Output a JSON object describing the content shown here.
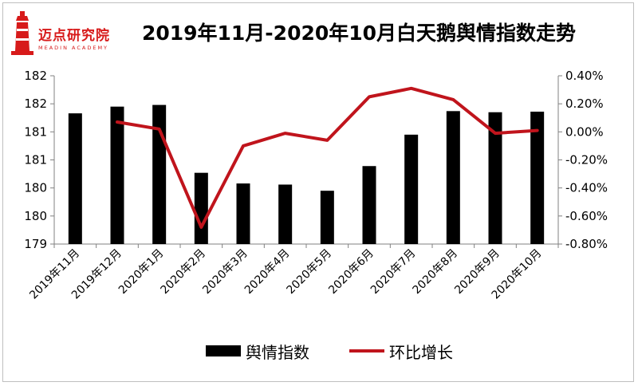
{
  "logo": {
    "name": "迈点研究院",
    "sub": "MEADIN ACADEMY"
  },
  "chart_data": {
    "type": "bar+line",
    "title": "2019年11月-2020年10月白天鹅舆情指数走势",
    "categories": [
      "2019年11月",
      "2019年12月",
      "2020年1月",
      "2020年2月",
      "2020年3月",
      "2020年4月",
      "2020年5月",
      "2020年6月",
      "2020年7月",
      "2020年8月",
      "2020年9月",
      "2020年10月"
    ],
    "series": [
      {
        "name": "舆情指数",
        "type": "bar",
        "axis": "left",
        "color": "#000000",
        "values": [
          181.33,
          181.45,
          181.48,
          180.27,
          180.08,
          180.06,
          179.95,
          180.39,
          180.95,
          181.37,
          181.35,
          181.36
        ]
      },
      {
        "name": "环比增长",
        "type": "line",
        "axis": "right",
        "color": "#c0141c",
        "values": [
          null,
          0.0007,
          0.0002,
          -0.0068,
          -0.001,
          -0.0001,
          -0.0006,
          0.0025,
          0.0031,
          0.0023,
          -0.0001,
          0.0001
        ]
      }
    ],
    "y_left": {
      "min": 179,
      "max": 182.0,
      "step": 0.5,
      "tick_labels": [
        "179",
        "180",
        "180",
        "181",
        "181",
        "182",
        "182"
      ]
    },
    "y_right": {
      "min": -0.008,
      "max": 0.004,
      "step": 0.002,
      "tick_labels": [
        "-0.80%",
        "-0.60%",
        "-0.40%",
        "-0.20%",
        "0.00%",
        "0.20%",
        "0.40%"
      ]
    },
    "grid": false,
    "legend_position": "bottom"
  }
}
